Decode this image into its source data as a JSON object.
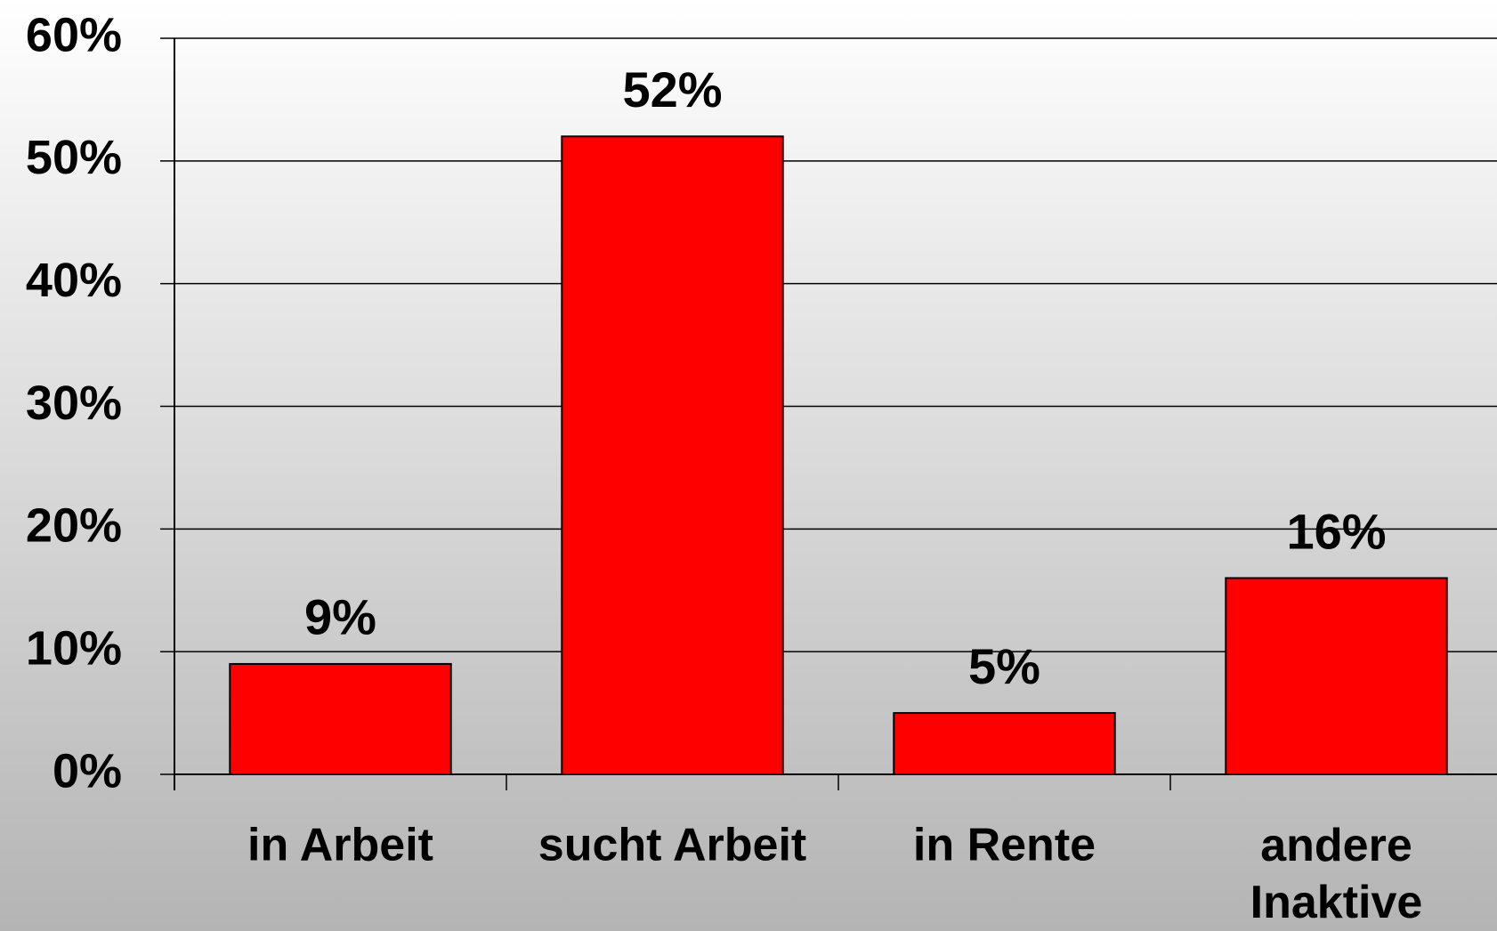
{
  "chart_data": {
    "type": "bar",
    "categories": [
      "in Arbeit",
      "sucht Arbeit",
      "in Rente",
      "andere Inaktive"
    ],
    "values": [
      9,
      52,
      5,
      16
    ],
    "value_labels": [
      "9%",
      "52%",
      "5%",
      "16%"
    ],
    "color": "#ff0000",
    "ylim": [
      0,
      60
    ],
    "yticks": [
      {
        "value": 0,
        "label": "0%"
      },
      {
        "value": 10,
        "label": "10%"
      },
      {
        "value": 20,
        "label": "20%"
      },
      {
        "value": 30,
        "label": "30%"
      },
      {
        "value": 40,
        "label": "40%"
      },
      {
        "value": 50,
        "label": "50%"
      },
      {
        "value": 60,
        "label": "60%"
      }
    ],
    "grid": true
  }
}
